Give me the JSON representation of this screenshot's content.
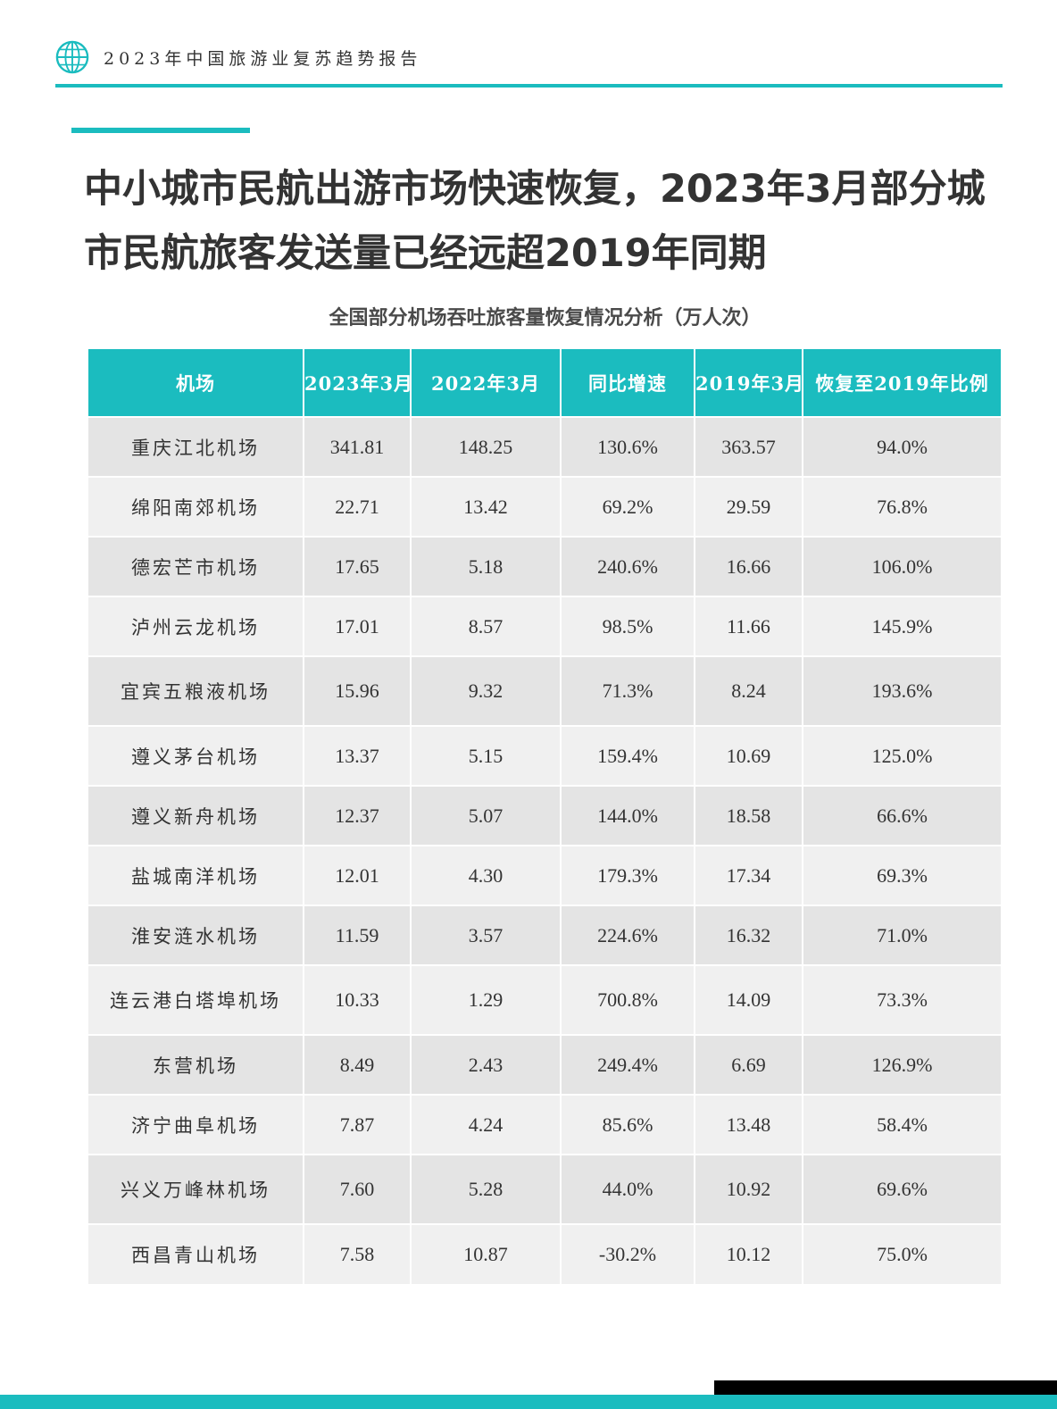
{
  "header": {
    "report_title": "2023年中国旅游业复苏趋势报告"
  },
  "headline": "中小城市民航出游市场快速恢复，2023年3月部分城市民航旅客发送量已经远超2019年同期",
  "table": {
    "title": "全国部分机场吞吐旅客量恢复情况分析（万人次）",
    "columns": [
      "机场",
      "2023年3月",
      "2022年3月",
      "同比增速",
      "2019年3月",
      "恢复至2019年比例"
    ],
    "rows": [
      [
        "重庆江北机场",
        "341.81",
        "148.25",
        "130.6%",
        "363.57",
        "94.0%"
      ],
      [
        "绵阳南郊机场",
        "22.71",
        "13.42",
        "69.2%",
        "29.59",
        "76.8%"
      ],
      [
        "德宏芒市机场",
        "17.65",
        "5.18",
        "240.6%",
        "16.66",
        "106.0%"
      ],
      [
        "泸州云龙机场",
        "17.01",
        "8.57",
        "98.5%",
        "11.66",
        "145.9%"
      ],
      [
        "宜宾五粮液机场",
        "15.96",
        "9.32",
        "71.3%",
        "8.24",
        "193.6%"
      ],
      [
        "遵义茅台机场",
        "13.37",
        "5.15",
        "159.4%",
        "10.69",
        "125.0%"
      ],
      [
        "遵义新舟机场",
        "12.37",
        "5.07",
        "144.0%",
        "18.58",
        "66.6%"
      ],
      [
        "盐城南洋机场",
        "12.01",
        "4.30",
        "179.3%",
        "17.34",
        "69.3%"
      ],
      [
        "淮安涟水机场",
        "11.59",
        "3.57",
        "224.6%",
        "16.32",
        "71.0%"
      ],
      [
        "连云港白塔埠机场",
        "10.33",
        "1.29",
        "700.8%",
        "14.09",
        "73.3%"
      ],
      [
        "东营机场",
        "8.49",
        "2.43",
        "249.4%",
        "6.69",
        "126.9%"
      ],
      [
        "济宁曲阜机场",
        "7.87",
        "4.24",
        "85.6%",
        "13.48",
        "58.4%"
      ],
      [
        "兴义万峰林机场",
        "7.60",
        "5.28",
        "44.0%",
        "10.92",
        "69.6%"
      ],
      [
        "西昌青山机场",
        "7.58",
        "10.87",
        "-30.2%",
        "10.12",
        "75.0%"
      ]
    ]
  },
  "colors": {
    "accent": "#1bbcbf",
    "row_dark": "#e4e4e4",
    "row_light": "#f0f0f0",
    "text": "#333333"
  },
  "icons": {
    "logo": "globe-logo-icon"
  }
}
